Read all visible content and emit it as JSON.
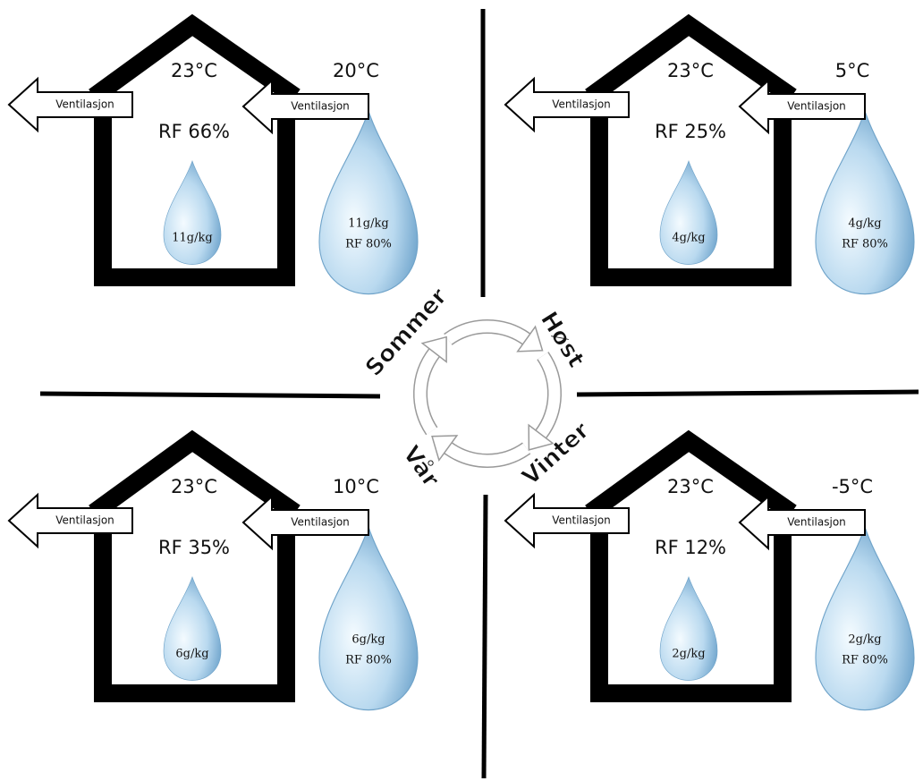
{
  "quadrants": [
    {
      "indoor_temp": "23°C",
      "outdoor_temp": "20°C",
      "indoor_rh": "RF 66%",
      "indoor_moisture": "11g/kg",
      "outdoor_moisture": "11g/kg",
      "outdoor_rh": "RF 80%",
      "vent_out": "Ventilasjon",
      "vent_in": "Ventilasjon"
    },
    {
      "indoor_temp": "23°C",
      "outdoor_temp": "5°C",
      "indoor_rh": "RF 25%",
      "indoor_moisture": "4g/kg",
      "outdoor_moisture": "4g/kg",
      "outdoor_rh": "RF 80%",
      "vent_out": "Ventilasjon",
      "vent_in": "Ventilasjon"
    },
    {
      "indoor_temp": "23°C",
      "outdoor_temp": "10°C",
      "indoor_rh": "RF 35%",
      "indoor_moisture": "6g/kg",
      "outdoor_moisture": "6g/kg",
      "outdoor_rh": "RF 80%",
      "vent_out": "Ventilasjon",
      "vent_in": "Ventilasjon"
    },
    {
      "indoor_temp": "23°C",
      "outdoor_temp": "-5°C",
      "indoor_rh": "RF 12%",
      "indoor_moisture": "2g/kg",
      "outdoor_moisture": "2g/kg",
      "outdoor_rh": "RF 80%",
      "vent_out": "Ventilasjon",
      "vent_in": "Ventilasjon"
    }
  ],
  "cycle": {
    "labels": [
      {
        "text": "Sommer",
        "color": "#f7a400"
      },
      {
        "text": "Høst",
        "color": "#e8161b"
      },
      {
        "text": "Vinter",
        "color": "#2f4f9c"
      },
      {
        "text": "Vår",
        "color": "#17a34a"
      }
    ]
  }
}
